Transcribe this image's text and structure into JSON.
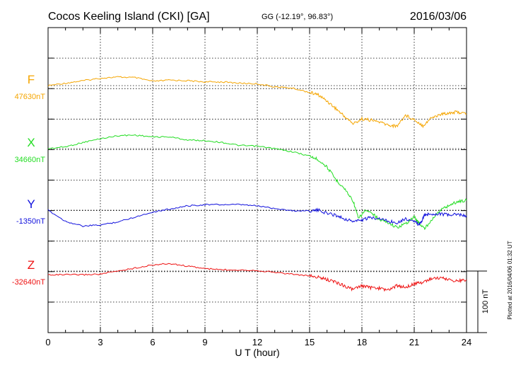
{
  "header": {
    "station": "Cocos Keeling Island (CKI)  [GA]",
    "coords": "GG (-12.19°,  96.83°)",
    "date": "2016/03/06"
  },
  "footer": {
    "plotted": "Plotted at 2016/04/06 01:32 UT"
  },
  "scale_bar": {
    "label": "100 nT",
    "nT": 100
  },
  "chart_data": {
    "type": "line",
    "xlabel": "U T (hour)",
    "xlim": [
      0,
      24
    ],
    "x_ticks": [
      0,
      3,
      6,
      9,
      12,
      15,
      18,
      21,
      24
    ],
    "grid": true,
    "series": [
      {
        "name": "F",
        "baseline_label": "47630nT",
        "baseline_nT": 47630,
        "color": "#f5a500",
        "x": [
          0,
          1,
          2,
          3,
          4,
          5,
          6,
          7,
          8,
          9,
          10,
          11,
          12,
          13,
          14,
          15,
          15.5,
          16,
          16.5,
          17,
          17.5,
          18,
          18.5,
          19,
          19.5,
          20,
          20.5,
          21,
          21.5,
          22,
          22.5,
          23,
          23.5,
          24
        ],
        "values": [
          47630,
          47634,
          47638,
          47642,
          47644,
          47643,
          47637,
          47639,
          47638,
          47636,
          47636,
          47634,
          47633,
          47628,
          47626,
          47619,
          47615,
          47605,
          47593,
          47580,
          47568,
          47576,
          47574,
          47571,
          47566,
          47564,
          47582,
          47575,
          47565,
          47578,
          47583,
          47586,
          47587,
          47584
        ]
      },
      {
        "name": "X",
        "baseline_label": "34660nT",
        "baseline_nT": 34660,
        "color": "#22dd22",
        "x": [
          0,
          1,
          2,
          3,
          4,
          5,
          6,
          7,
          8,
          9,
          10,
          11,
          12,
          13,
          14,
          15,
          15.5,
          16,
          16.5,
          17,
          17.5,
          17.8,
          18.2,
          18.7,
          19,
          19.5,
          20,
          20.5,
          21,
          21.3,
          21.6,
          22,
          22.5,
          23,
          23.5,
          24
        ],
        "values": [
          34660,
          34663,
          34670,
          34676,
          34681,
          34682,
          34679,
          34679,
          34674,
          34673,
          34670,
          34665,
          34664,
          34660,
          34655,
          34648,
          34642,
          34630,
          34610,
          34595,
          34575,
          34546,
          34560,
          34552,
          34545,
          34540,
          34532,
          34538,
          34549,
          34538,
          34530,
          34545,
          34560,
          34568,
          34574,
          34576
        ]
      },
      {
        "name": "Y",
        "baseline_label": "-1350nT",
        "baseline_nT": -1350,
        "color": "#1010dd",
        "x": [
          0,
          1,
          2,
          3,
          4,
          5,
          6,
          7,
          8,
          9,
          10,
          11,
          12,
          13,
          14,
          15,
          15.5,
          16,
          16.5,
          17,
          17.5,
          18,
          18.5,
          19,
          19.5,
          20,
          20.5,
          21,
          21.3,
          21.6,
          22,
          22.5,
          23,
          23.5,
          24
        ],
        "values": [
          -1350,
          -1368,
          -1376,
          -1374,
          -1369,
          -1361,
          -1353,
          -1348,
          -1343,
          -1341,
          -1341,
          -1341,
          -1343,
          -1347,
          -1351,
          -1351,
          -1350,
          -1355,
          -1358,
          -1364,
          -1368,
          -1366,
          -1362,
          -1363,
          -1368,
          -1370,
          -1364,
          -1368,
          -1374,
          -1358,
          -1356,
          -1356,
          -1358,
          -1357,
          -1359
        ]
      },
      {
        "name": "Z",
        "baseline_label": "-32640nT",
        "baseline_nT": -32640,
        "color": "#ee1111",
        "x": [
          0,
          1,
          2,
          3,
          4,
          5,
          6,
          7,
          8,
          9,
          10,
          11,
          12,
          13,
          14,
          15,
          15.5,
          16,
          16.5,
          17,
          17.5,
          18,
          18.5,
          19,
          19.5,
          20,
          20.5,
          21,
          21.5,
          22,
          22.5,
          23,
          23.5,
          24
        ],
        "values": [
          -32646,
          -32646,
          -32646,
          -32645,
          -32640,
          -32635,
          -32630,
          -32628,
          -32632,
          -32636,
          -32638,
          -32638,
          -32639,
          -32642,
          -32645,
          -32648,
          -32650,
          -32654,
          -32658,
          -32664,
          -32670,
          -32664,
          -32667,
          -32668,
          -32671,
          -32664,
          -32666,
          -32661,
          -32658,
          -32652,
          -32651,
          -32654,
          -32656,
          -32654
        ]
      }
    ]
  }
}
